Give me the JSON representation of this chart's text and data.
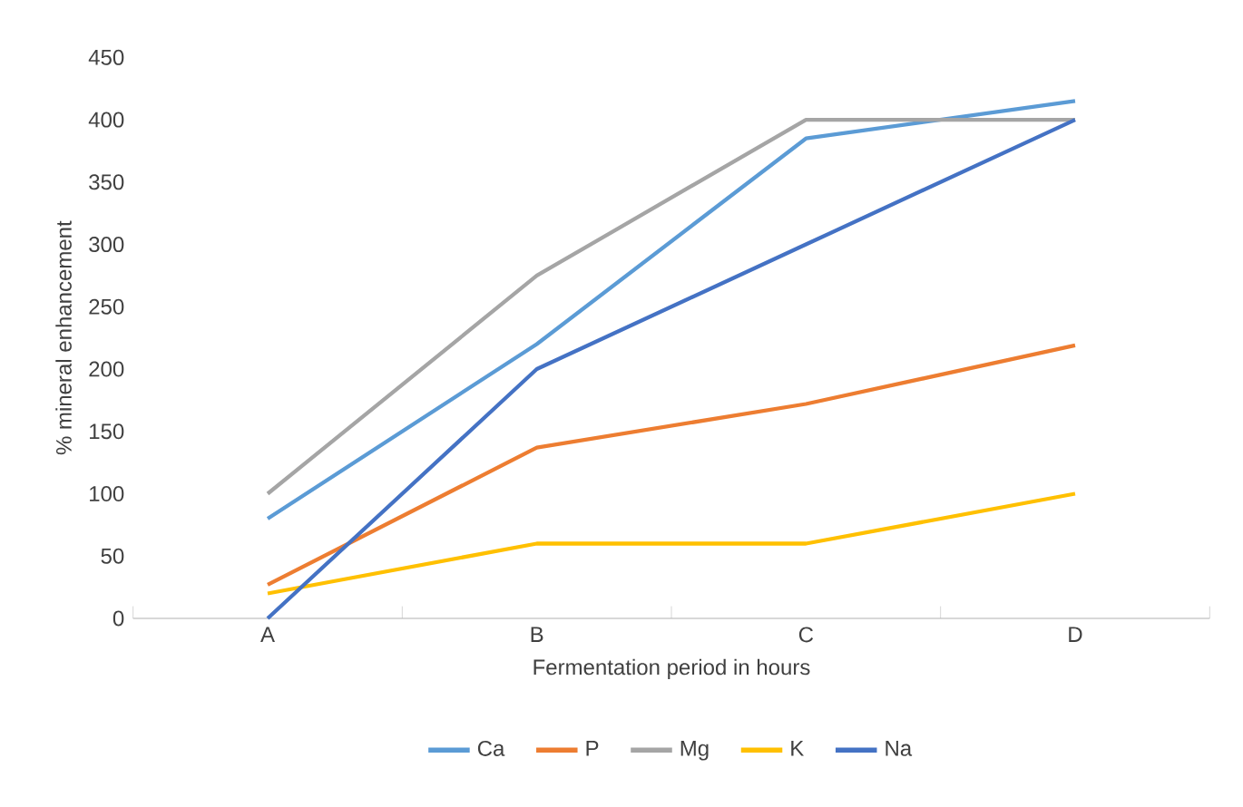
{
  "chart_data": {
    "type": "line",
    "xlabel": "Fermentation period in hours",
    "ylabel": "% mineral enhancement",
    "categories": [
      "A",
      "B",
      "C",
      "D"
    ],
    "series": [
      {
        "name": "Ca",
        "color": "#5b9bd5",
        "values": [
          80,
          220,
          385,
          415
        ]
      },
      {
        "name": "P",
        "color": "#ed7d31",
        "values": [
          27,
          137,
          172,
          219
        ]
      },
      {
        "name": "Mg",
        "color": "#a5a5a5",
        "values": [
          100,
          275,
          400,
          400
        ]
      },
      {
        "name": "K",
        "color": "#ffc000",
        "values": [
          20,
          60,
          60,
          100
        ]
      },
      {
        "name": "Na",
        "color": "#4472c4",
        "values": [
          0,
          200,
          300,
          400
        ]
      }
    ],
    "ylim": [
      0,
      450
    ],
    "yticks": [
      0,
      50,
      100,
      150,
      200,
      250,
      300,
      350,
      400,
      450
    ],
    "grid": false,
    "legend": "bottom",
    "marker": "none",
    "line_style": "solid"
  }
}
